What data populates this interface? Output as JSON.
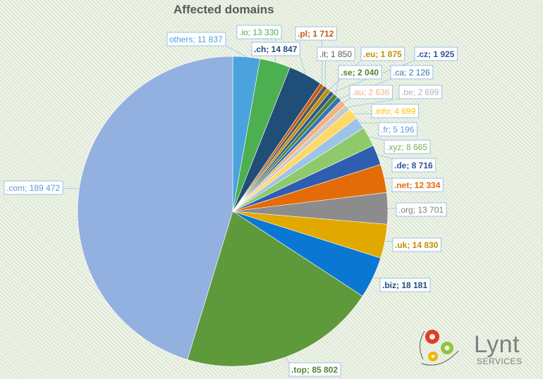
{
  "chart_data": {
    "type": "pie",
    "title": "Affected domains",
    "slices": [
      {
        "label": "others",
        "value": 11837,
        "color": "#4ba3de",
        "text_color": "#4ba3de"
      },
      {
        "label": ".io",
        "value": 13330,
        "color": "#4caf50",
        "text_color": "#4caf50"
      },
      {
        "label": ".ch",
        "value": 14847,
        "color": "#1f4e79",
        "text_color": "#1f4e79"
      },
      {
        "label": ".pl",
        "value": 1712,
        "color": "#c55a11",
        "text_color": "#c55a11"
      },
      {
        "label": ".it",
        "value": 1850,
        "color": "#595959",
        "text_color": "#595959"
      },
      {
        "label": ".eu",
        "value": 1875,
        "color": "#bf8f00",
        "text_color": "#bf8f00"
      },
      {
        "label": ".cz",
        "value": 1925,
        "color": "#2f5597",
        "text_color": "#2f5597"
      },
      {
        "label": ".se",
        "value": 2040,
        "color": "#548235",
        "text_color": "#548235"
      },
      {
        "label": ".ca",
        "value": 2126,
        "color": "#2e75b6",
        "text_color": "#2e75b6"
      },
      {
        "label": ".au",
        "value": 2636,
        "color": "#f4b183",
        "text_color": "#f4b183"
      },
      {
        "label": ".be",
        "value": 2699,
        "color": "#c9c9c9",
        "text_color": "#b4b4b4"
      },
      {
        "label": ".info",
        "value": 4699,
        "color": "#ffd966",
        "text_color": "#ffc000"
      },
      {
        "label": ".fr",
        "value": 5196,
        "color": "#9dc3e6",
        "text_color": "#5b9bd5"
      },
      {
        "label": ".xyz",
        "value": 8665,
        "color": "#8fca6a",
        "text_color": "#70ad47"
      },
      {
        "label": ".de",
        "value": 8716,
        "color": "#2f5eb1",
        "text_color": "#2f5597"
      },
      {
        "label": ".net",
        "value": 12334,
        "color": "#e36c09",
        "text_color": "#e36c09"
      },
      {
        "label": ".org",
        "value": 13701,
        "color": "#8c8c8c",
        "text_color": "#7f7f7f"
      },
      {
        "label": ".uk",
        "value": 14830,
        "color": "#e1a800",
        "text_color": "#bf8f00"
      },
      {
        "label": ".biz",
        "value": 18181,
        "color": "#0a78d2",
        "text_color": "#1f4e79"
      },
      {
        "label": ".top",
        "value": 85802,
        "color": "#5e9a3c",
        "text_color": "#548235"
      },
      {
        "label": ".com",
        "value": 189472,
        "color": "#92b0e0",
        "text_color": "#5b9bd5"
      }
    ],
    "legend": "none"
  },
  "logo": {
    "name": "Lynt",
    "sub": "SERVICES"
  }
}
